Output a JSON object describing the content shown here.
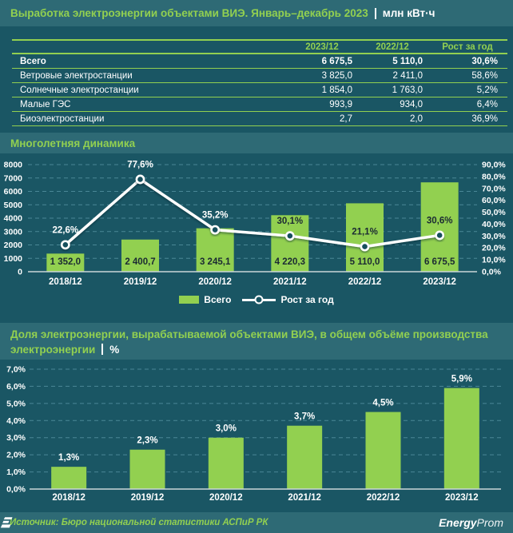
{
  "page": {
    "background": "#1A5664",
    "band_color": "#2E6A75",
    "accent_green": "#92D050",
    "dark_label": "#1B2A33",
    "gridline_color": "#4A8796",
    "axis_color": "#C9D5D8"
  },
  "header": {
    "title": "Выработка электроэнергии объектами ВИЭ. Январь–декабрь 2023",
    "unit": "млн кВт·ч"
  },
  "table": {
    "columns": [
      "2023/12",
      "2022/12",
      "Рост за год"
    ],
    "rows": [
      {
        "name": "Всего",
        "v2023": "6 675,5",
        "v2022": "5 110,0",
        "growth": "30,6%"
      },
      {
        "name": "Ветровые электростанции",
        "v2023": "3 825,0",
        "v2022": "2 411,0",
        "growth": "58,6%"
      },
      {
        "name": "Солнечные электростанции",
        "v2023": "1 854,0",
        "v2022": "1 763,0",
        "growth": "5,2%"
      },
      {
        "name": "Малые ГЭС",
        "v2023": "993,9",
        "v2022": "934,0",
        "growth": "6,4%"
      },
      {
        "name": "Биоэлектростанции",
        "v2023": "2,7",
        "v2022": "2,0",
        "growth": "36,9%"
      }
    ]
  },
  "section2": {
    "title": "Многолетняя динамика"
  },
  "section3": {
    "title": "Доля электроэнергии, вырабатываемой объектами ВИЭ, в общем объёме производства электроэнергии",
    "unit": "%"
  },
  "legend": {
    "bar": "Всего",
    "line": "Рост за год"
  },
  "chart_data": [
    {
      "type": "combo-bar-line",
      "title": "Многолетняя динамика",
      "categories": [
        "2018/12",
        "2019/12",
        "2020/12",
        "2021/12",
        "2022/12",
        "2023/12"
      ],
      "series": [
        {
          "name": "Всего",
          "type": "bar",
          "values": [
            1352.0,
            2400.7,
            3245.1,
            4220.3,
            5110.0,
            6675.5
          ],
          "labels": [
            "1 352,0",
            "2 400,7",
            "3 245,1",
            "4 220,3",
            "5 110,0",
            "6 675,5"
          ]
        },
        {
          "name": "Рост за год",
          "type": "line",
          "values": [
            22.6,
            77.6,
            35.2,
            30.1,
            21.1,
            30.6
          ],
          "labels": [
            "22,6%",
            "77,6%",
            "35,2%",
            "30,1%",
            "21,1%",
            "30,6%"
          ]
        }
      ],
      "axis_left": {
        "min": 0,
        "max": 8000,
        "step": 1000,
        "ticks": [
          "0",
          "1000",
          "2000",
          "3000",
          "4000",
          "5000",
          "6000",
          "7000",
          "8000"
        ]
      },
      "axis_right": {
        "min": 0,
        "max": 90,
        "step": 10,
        "ticks": [
          "0,0%",
          "10,0%",
          "20,0%",
          "30,0%",
          "40,0%",
          "50,0%",
          "60,0%",
          "70,0%",
          "80,0%",
          "90,0%"
        ]
      },
      "grid": "dashed",
      "legend_position": "bottom"
    },
    {
      "type": "bar",
      "title": "Доля электроэнергии, вырабатываемой объектами ВИЭ, в общем объёме производства электроэнергии, %",
      "categories": [
        "2018/12",
        "2019/12",
        "2020/12",
        "2021/12",
        "2022/12",
        "2023/12"
      ],
      "values": [
        1.3,
        2.3,
        3.0,
        3.7,
        4.5,
        5.9
      ],
      "labels": [
        "1,3%",
        "2,3%",
        "3,0%",
        "3,7%",
        "4,5%",
        "5,9%"
      ],
      "axis_y": {
        "min": 0,
        "max": 7,
        "step": 1,
        "ticks": [
          "0,0%",
          "1,0%",
          "2,0%",
          "3,0%",
          "4,0%",
          "5,0%",
          "6,0%",
          "7,0%"
        ]
      },
      "grid": "dashed"
    }
  ],
  "footer": {
    "source": "Источник: Бюро национальной статистики АСПиР РК",
    "logo_bold": "Energy",
    "logo_light": "Prom"
  }
}
